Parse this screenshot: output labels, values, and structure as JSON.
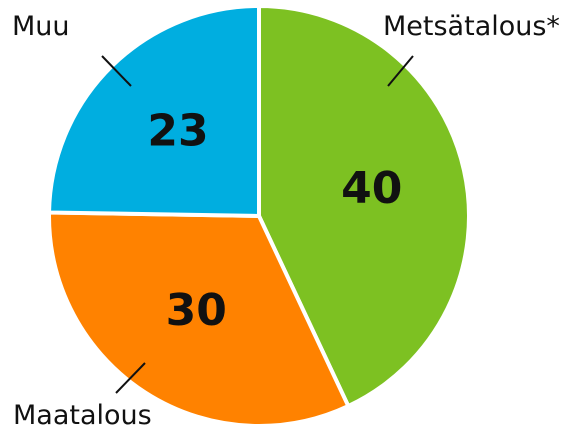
{
  "chart_data": {
    "type": "pie",
    "title": "",
    "slices": [
      {
        "label": "Metsätalous*",
        "value": 40,
        "color": "#7dc122"
      },
      {
        "label": "Maatalous",
        "value": 30,
        "color": "#ff8200"
      },
      {
        "label": "Muu",
        "value": 23,
        "color": "#00aee0"
      }
    ],
    "start_angle": "top",
    "direction": "clockwise",
    "legend": "none"
  }
}
